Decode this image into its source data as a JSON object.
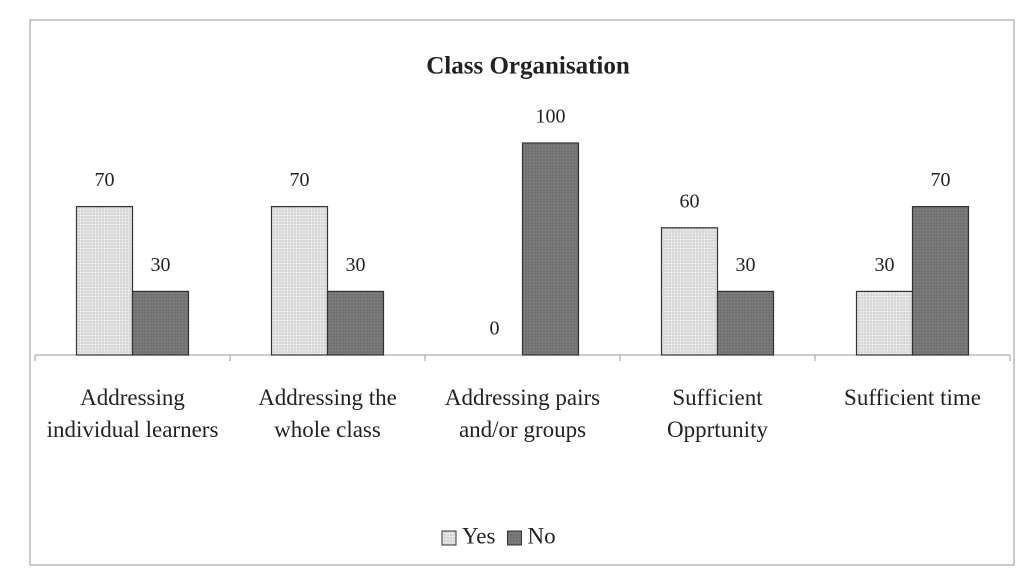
{
  "chart_data": {
    "type": "bar",
    "title": "Class Organisation",
    "categories": [
      "Addressing individual learners",
      "Addressing the whole class",
      "Addressing pairs and/or groups",
      "Sufficient Opprtunity",
      "Sufficient time"
    ],
    "series": [
      {
        "name": "Yes",
        "color": "#e6e6e6",
        "values": [
          70,
          70,
          0,
          60,
          30
        ]
      },
      {
        "name": "No",
        "color": "#7a7a7a",
        "values": [
          30,
          30,
          100,
          30,
          70
        ]
      }
    ],
    "legend": "bottom"
  }
}
